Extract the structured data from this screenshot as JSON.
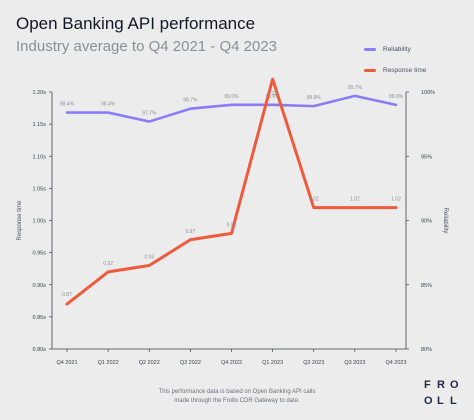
{
  "chart_data": {
    "type": "line",
    "title": "Open Banking API performance",
    "subtitle": "Industry average to Q4 2021 - Q4 2023",
    "categories": [
      "Q4 2021",
      "Q1 2022",
      "Q2 2022",
      "Q3 2022",
      "Q4 2022",
      "Q1 2023",
      "Q2 2023",
      "Q3 2023",
      "Q4 2023"
    ],
    "series": [
      {
        "name": "Reliability",
        "axis": "right",
        "values": [
          98.4,
          98.4,
          97.7,
          98.7,
          99.0,
          99.0,
          98.9,
          99.7,
          99.0
        ],
        "labels": [
          "98.4%",
          "98.4%",
          "97.7%",
          "98.7%",
          "99.0%",
          "99.0%",
          "98.9%",
          "99.7%",
          "99.0%"
        ],
        "color": "#8b7cf6"
      },
      {
        "name": "Response time",
        "axis": "left",
        "values": [
          0.87,
          0.92,
          0.93,
          0.97,
          0.98,
          1.22,
          1.02,
          1.02,
          1.02
        ],
        "labels": [
          "0.87",
          "0.92",
          "0.93",
          "0.97",
          "0.98",
          "1.22",
          "1.02",
          "1.02",
          "1.02"
        ],
        "color": "#ef5a3c"
      }
    ],
    "y_left": {
      "label": "Response time",
      "ylim": [
        0.8,
        1.2
      ],
      "ticks": [
        "0.80s",
        "0.85s",
        "0.90s",
        "0.95s",
        "1.00s",
        "1.05s",
        "1.10s",
        "1.15s",
        "1.20s"
      ]
    },
    "y_right": {
      "label": "Reliability",
      "ylim": [
        80,
        100
      ],
      "ticks": [
        "80%",
        "85%",
        "90%",
        "95%",
        "100%"
      ]
    },
    "grid": false,
    "legend_position": "top-right"
  },
  "footnote": {
    "line1": "This performance data is based on Open Banking API calls",
    "line2": "made through the Frollo CDR Gateway to date."
  },
  "logo_text": "FROLLO"
}
